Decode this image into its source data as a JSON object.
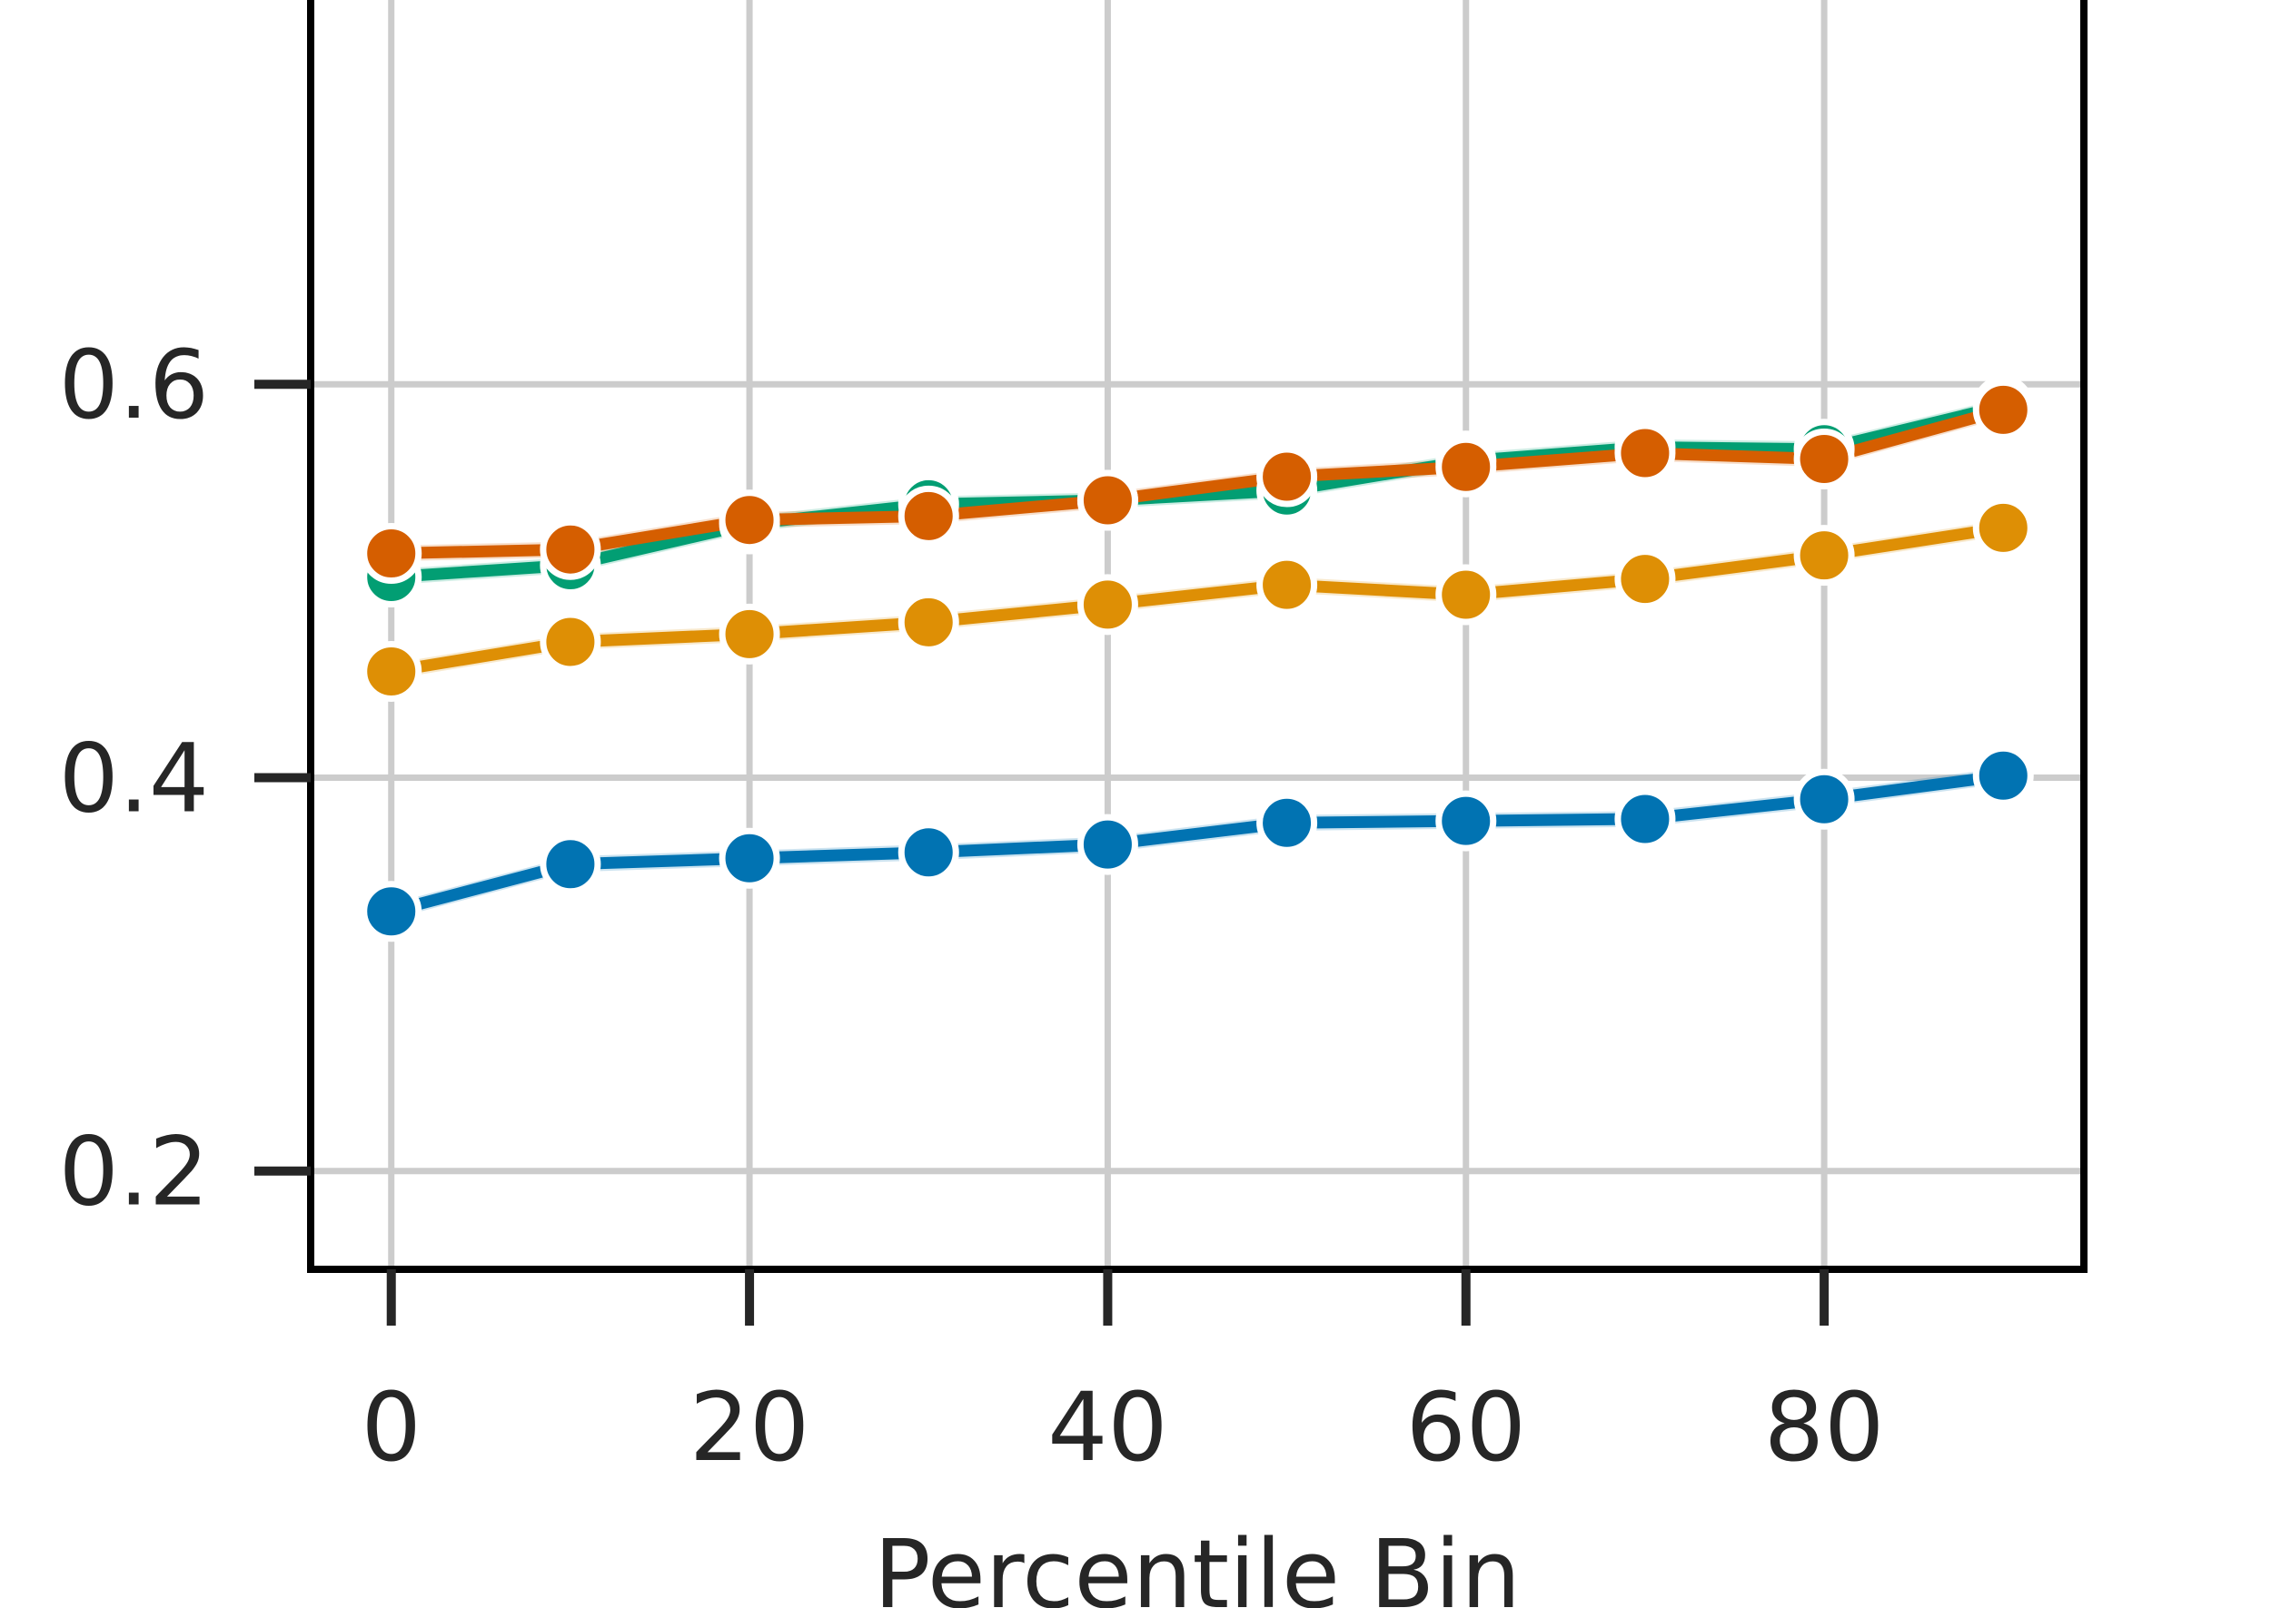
{
  "chart_data": {
    "type": "line",
    "title": "",
    "xlabel": "Percentile Bin",
    "ylabel": "",
    "x": [
      0,
      10,
      20,
      30,
      40,
      50,
      60,
      70,
      80,
      90
    ],
    "xlim": [
      -4.5,
      94.5
    ],
    "ylim": [
      0.15,
      0.8
    ],
    "xticks": [
      0,
      20,
      40,
      60,
      80
    ],
    "xtick_labels": [
      "0",
      "20",
      "40",
      "60",
      "80"
    ],
    "yticks": [
      0.2,
      0.4,
      0.6
    ],
    "ytick_labels": [
      "0.2",
      "0.4",
      "0.6"
    ],
    "grid": true,
    "legend": false,
    "series": [
      {
        "color": "#0173b2",
        "values": [
          0.332,
          0.356,
          0.359,
          0.362,
          0.366,
          0.377,
          0.378,
          0.379,
          0.389,
          0.401
        ]
      },
      {
        "color": "#de8f05",
        "values": [
          0.454,
          0.469,
          0.473,
          0.479,
          0.488,
          0.498,
          0.493,
          0.501,
          0.513,
          0.527
        ]
      },
      {
        "color": "#029e73",
        "values": [
          0.502,
          0.508,
          0.529,
          0.539,
          0.541,
          0.546,
          0.561,
          0.568,
          0.567,
          0.589
        ]
      },
      {
        "color": "#d55e00",
        "values": [
          0.514,
          0.516,
          0.531,
          0.533,
          0.541,
          0.553,
          0.558,
          0.565,
          0.562,
          0.587
        ]
      }
    ]
  }
}
